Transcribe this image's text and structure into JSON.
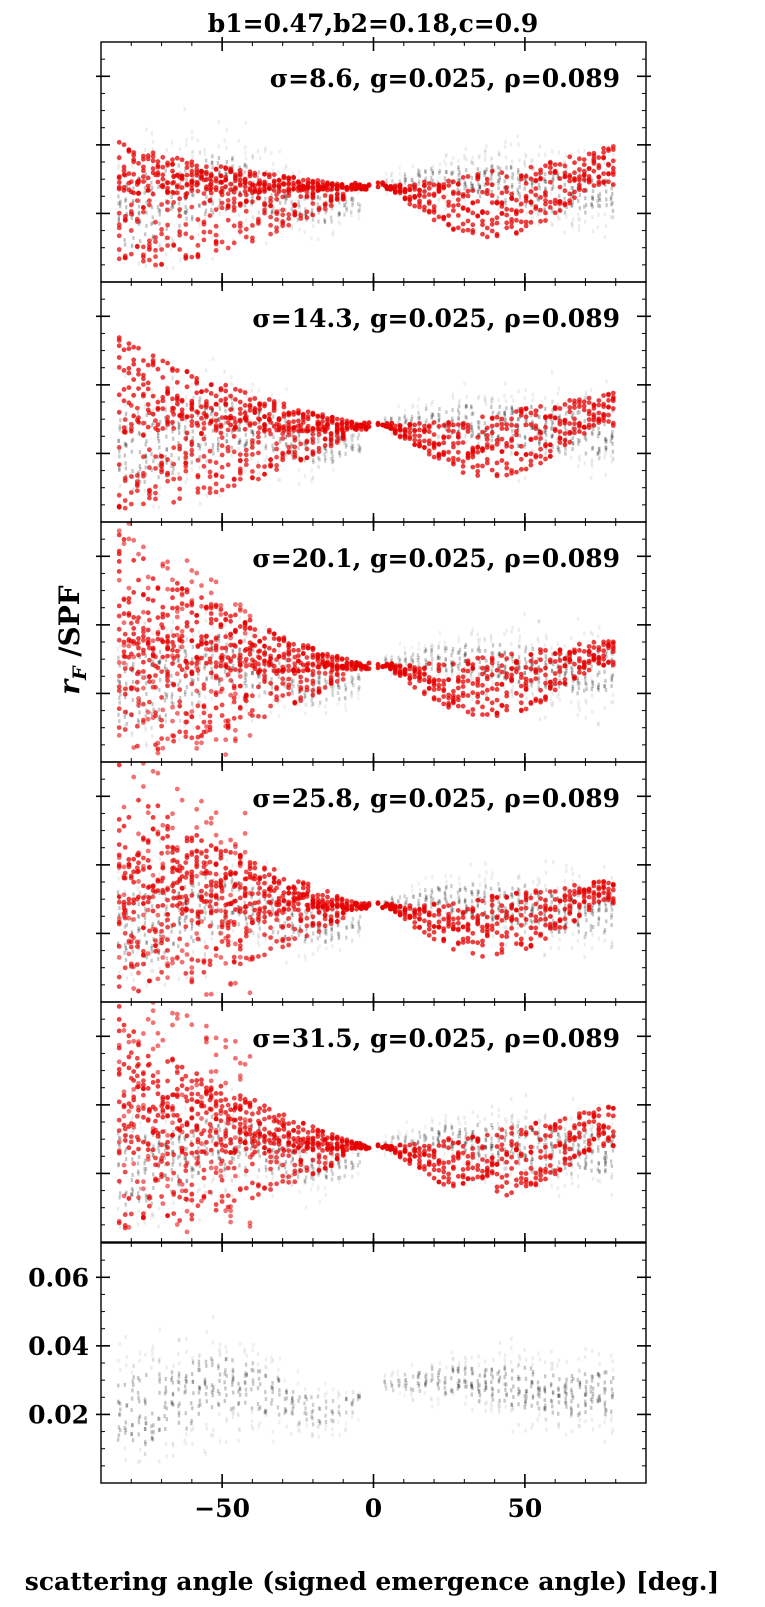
{
  "figure": {
    "title": "b1=0.47,b2=0.18,c=0.9",
    "ylabel": "r_F /SPF",
    "xlabel": "scattering angle (signed emergence angle) [deg.]",
    "colors": {
      "observed": "#000000",
      "model": "#e60000",
      "axis": "#000000"
    }
  },
  "chart_data": [
    {
      "type": "scatter",
      "panel": 1,
      "annotation": "σ=8.6, g=0.025, ρ=0.089",
      "series": [
        {
          "name": "",
          "color": "#000000"
        },
        {
          "name": "",
          "color": "#e60000"
        }
      ],
      "x_range": [
        -90,
        90
      ],
      "y_ticks_labeled": false,
      "model_shape": {
        "left_high": 0.042,
        "plateau": 0.032,
        "center": 0.028,
        "right_high": 0.04,
        "lobe": false
      }
    },
    {
      "type": "scatter",
      "panel": 2,
      "annotation": "σ=14.3, g=0.025, ρ=0.089",
      "series": [
        {
          "name": "",
          "color": "#000000"
        },
        {
          "name": "",
          "color": "#e60000"
        }
      ],
      "x_range": [
        -90,
        90
      ],
      "y_ticks_labeled": false,
      "model_shape": {
        "left_high": 0.058,
        "plateau": 0.035,
        "center": 0.028,
        "right_high": 0.038,
        "lobe": false
      }
    },
    {
      "type": "scatter",
      "panel": 3,
      "annotation": "σ=20.1, g=0.025, ρ=0.089",
      "series": [
        {
          "name": "",
          "color": "#000000"
        },
        {
          "name": "",
          "color": "#e60000"
        }
      ],
      "x_range": [
        -90,
        90
      ],
      "y_ticks_labeled": false,
      "model_shape": {
        "left_high": 0.07,
        "plateau": 0.044,
        "center": 0.028,
        "right_high": 0.036,
        "lobe": true
      }
    },
    {
      "type": "scatter",
      "panel": 4,
      "annotation": "σ=25.8, g=0.025, ρ=0.089",
      "series": [
        {
          "name": "",
          "color": "#000000"
        },
        {
          "name": "",
          "color": "#e60000"
        }
      ],
      "x_range": [
        -90,
        90
      ],
      "y_ticks_labeled": false,
      "model_shape": {
        "left_high": 0.072,
        "plateau": 0.052,
        "center": 0.028,
        "right_high": 0.036,
        "lobe": true
      }
    },
    {
      "type": "scatter",
      "panel": 5,
      "annotation": "σ=31.5, g=0.025, ρ=0.089",
      "series": [
        {
          "name": "",
          "color": "#000000"
        },
        {
          "name": "",
          "color": "#e60000"
        }
      ],
      "x_range": [
        -90,
        90
      ],
      "y_ticks_labeled": false,
      "model_shape": {
        "left_high": 0.072,
        "plateau": 0.058,
        "center": 0.028,
        "right_high": 0.04,
        "lobe": true
      }
    },
    {
      "type": "scatter",
      "panel": 6,
      "annotation": "",
      "series": [
        {
          "name": "",
          "color": "#000000"
        }
      ],
      "x_range": [
        -90,
        90
      ],
      "y_range": [
        0.0,
        0.07
      ],
      "xticks": [
        -50,
        0,
        50
      ],
      "xtick_labels": [
        "−50",
        "0",
        "50"
      ],
      "yticks": [
        0.02,
        0.04,
        0.06
      ],
      "ytick_labels": [
        "0.02",
        "0.04",
        "0.06"
      ]
    }
  ]
}
